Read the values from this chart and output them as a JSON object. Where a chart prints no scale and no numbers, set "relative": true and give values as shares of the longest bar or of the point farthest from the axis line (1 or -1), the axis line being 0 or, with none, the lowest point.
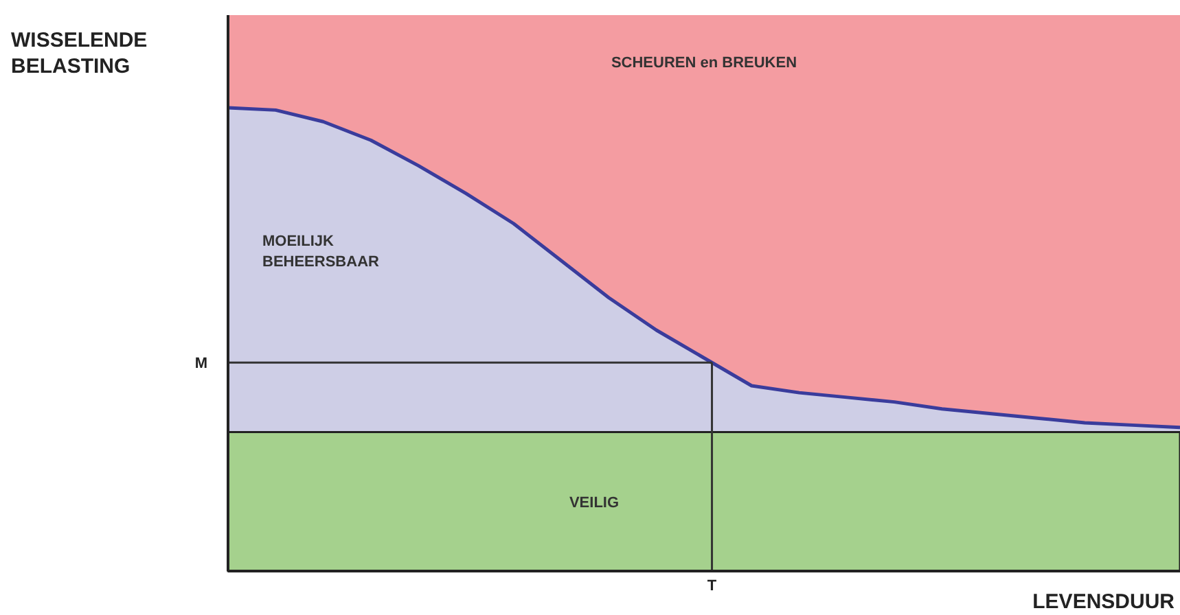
{
  "chart_data": {
    "type": "area",
    "relative": true,
    "ylabel": "WISSELENDE BELASTING",
    "xlabel": "LEVENSDUUR",
    "categories": [
      null,
      null,
      null,
      null,
      null,
      null,
      null,
      null,
      null,
      null,
      null,
      null,
      null,
      null,
      null,
      null,
      null,
      null,
      null,
      null,
      null
    ],
    "series": [
      {
        "color": "#3a3c9c",
        "values": [
          1,
          0.995,
          0.97,
          0.93,
          0.875,
          0.815,
          0.75,
          0.67,
          0.59,
          0.52,
          0.46,
          0.4,
          0.385,
          0.375,
          0.365,
          0.35,
          0.34,
          0.33,
          0.32,
          0.315,
          0.31
        ]
      }
    ],
    "bands": [
      {
        "axis": "y",
        "from": 0.3,
        "to": 1.2,
        "label": "SCHEUREN en BREUKEN",
        "color": "#f49ca1"
      },
      {
        "axis": "y",
        "from": 0,
        "to": 0.3,
        "label": "VEILIG",
        "color": "#a5d18d"
      }
    ],
    "annotations": [
      "MOEILIJK BEHEERSBAAR",
      "T"
    ],
    "ref_lines": [
      {
        "axis": "y",
        "value": 0.45,
        "label": "M",
        "color": "#333333"
      }
    ]
  }
}
